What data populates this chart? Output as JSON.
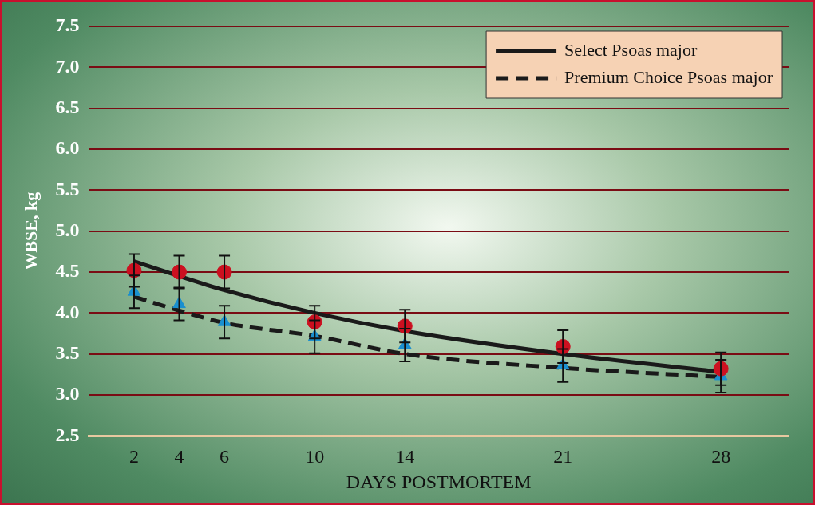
{
  "chart_data": {
    "type": "line",
    "xlabel": "DAYS POSTMORTEM",
    "ylabel": "WBSE, kg",
    "xlim": [
      0,
      31
    ],
    "xticks": [
      2,
      4,
      6,
      10,
      14,
      21,
      28
    ],
    "ylim": [
      2.5,
      7.5
    ],
    "yticks": [
      2.5,
      {
        "value": 3,
        "label": "3.0"
      },
      3.5,
      {
        "value": 4,
        "label": "4.0"
      },
      4.5,
      {
        "value": 5,
        "label": "5.0"
      },
      5.5,
      {
        "value": 6,
        "label": "6.0"
      },
      6.5,
      {
        "value": 7,
        "label": "7.0"
      },
      7.5
    ],
    "grid": "y",
    "legend": "top right",
    "series": [
      {
        "name": "Select Psoas major",
        "line_style": "solid",
        "marker": "none",
        "color": "#1a1a1a",
        "x": [
          2,
          4,
          6,
          10,
          14,
          21,
          28
        ],
        "values": [
          4.63,
          4.45,
          4.28,
          4.0,
          3.78,
          3.5,
          3.28
        ]
      },
      {
        "name": "Premium Choice Psoas major",
        "line_style": "dashed",
        "marker": "none",
        "color": "#1a1a1a",
        "x": [
          2,
          4,
          6,
          10,
          14,
          21,
          28
        ],
        "values": [
          4.2,
          4.03,
          3.88,
          3.72,
          3.5,
          3.33,
          3.22
        ]
      },
      {
        "type": "scatter",
        "marker": "circle",
        "color": "#cc1020",
        "x": [
          2,
          4,
          6,
          10,
          14,
          21,
          28
        ],
        "values": [
          4.52,
          4.5,
          4.5,
          3.89,
          3.84,
          3.59,
          3.32
        ],
        "errors": [
          0.2,
          0.2,
          0.2,
          0.2,
          0.2,
          0.2,
          0.2
        ]
      },
      {
        "type": "scatter",
        "marker": "triangle",
        "color": "#1a8fd0",
        "x": [
          2,
          4,
          6,
          10,
          14,
          21,
          28
        ],
        "values": [
          4.26,
          4.11,
          3.89,
          3.71,
          3.61,
          3.36,
          3.23
        ],
        "errors": [
          0.2,
          0.2,
          0.2,
          0.2,
          0.2,
          0.2,
          0.2
        ]
      }
    ]
  }
}
